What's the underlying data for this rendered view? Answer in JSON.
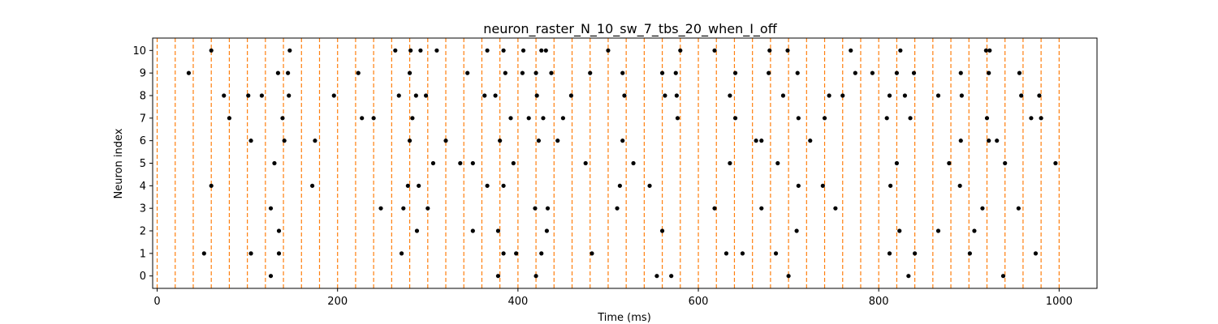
{
  "chart_data": {
    "type": "scatter",
    "title": "neuron_raster_N_10_sw_7_tbs_20_when_I_off",
    "xlabel": "Time (ms)",
    "ylabel": "Neuron index",
    "xlim": [
      -5,
      1042
    ],
    "ylim": [
      -0.55,
      10.55
    ],
    "x_ticks": [
      0,
      200,
      400,
      600,
      800,
      1000
    ],
    "x_tick_labels": [
      "0",
      "200",
      "400",
      "600",
      "800",
      "1000"
    ],
    "y_ticks": [
      0,
      1,
      2,
      3,
      4,
      5,
      6,
      7,
      8,
      9,
      10
    ],
    "y_tick_labels": [
      "0",
      "1",
      "2",
      "3",
      "4",
      "5",
      "6",
      "7",
      "8",
      "9",
      "10"
    ],
    "grid": false,
    "marker_color": "#000000",
    "vline_color": "#ff7f0e",
    "vlines": [
      0,
      20,
      40,
      60,
      80,
      100,
      120,
      140,
      160,
      180,
      200,
      220,
      240,
      260,
      280,
      300,
      320,
      340,
      360,
      380,
      400,
      420,
      440,
      460,
      480,
      500,
      520,
      540,
      560,
      580,
      600,
      620,
      640,
      660,
      680,
      700,
      720,
      740,
      760,
      780,
      800,
      820,
      840,
      860,
      880,
      900,
      920,
      940,
      960,
      980,
      1000
    ],
    "spikes": [
      {
        "neuron": 10,
        "times": [
          60,
          147,
          264,
          281,
          292,
          310,
          366,
          384,
          406,
          426,
          431,
          500,
          580,
          618,
          679,
          699,
          769,
          824,
          919,
          923
        ]
      },
      {
        "neuron": 9,
        "times": [
          35,
          134,
          145,
          223,
          280,
          344,
          386,
          405,
          420,
          437,
          480,
          516,
          560,
          575,
          641,
          678,
          710,
          774,
          793,
          820,
          839,
          891,
          922,
          956
        ]
      },
      {
        "neuron": 8,
        "times": [
          74,
          101,
          116,
          146,
          196,
          268,
          287,
          298,
          363,
          375,
          421,
          459,
          518,
          563,
          576,
          635,
          694,
          745,
          760,
          812,
          829,
          866,
          892,
          958,
          978
        ]
      },
      {
        "neuron": 7,
        "times": [
          80,
          139,
          227,
          240,
          283,
          392,
          412,
          428,
          450,
          577,
          641,
          711,
          740,
          809,
          835,
          920,
          969,
          980
        ]
      },
      {
        "neuron": 6,
        "times": [
          104,
          141,
          175,
          280,
          320,
          380,
          423,
          444,
          516,
          664,
          670,
          724,
          891,
          922,
          931
        ]
      },
      {
        "neuron": 5,
        "times": [
          130,
          306,
          336,
          350,
          395,
          475,
          528,
          635,
          688,
          820,
          878,
          940,
          996
        ]
      },
      {
        "neuron": 4,
        "times": [
          60,
          172,
          278,
          290,
          366,
          384,
          513,
          546,
          711,
          738,
          813,
          890
        ]
      },
      {
        "neuron": 3,
        "times": [
          126,
          248,
          273,
          300,
          419,
          433,
          510,
          618,
          670,
          752,
          915,
          955
        ]
      },
      {
        "neuron": 2,
        "times": [
          135,
          350,
          378,
          288,
          432,
          560,
          709,
          823,
          866,
          906
        ]
      },
      {
        "neuron": 1,
        "times": [
          52,
          104,
          135,
          271,
          384,
          398,
          426,
          482,
          631,
          649,
          686,
          812,
          840,
          901,
          974
        ]
      },
      {
        "neuron": 0,
        "times": [
          126,
          378,
          420,
          554,
          570,
          700,
          833,
          938
        ]
      }
    ]
  }
}
